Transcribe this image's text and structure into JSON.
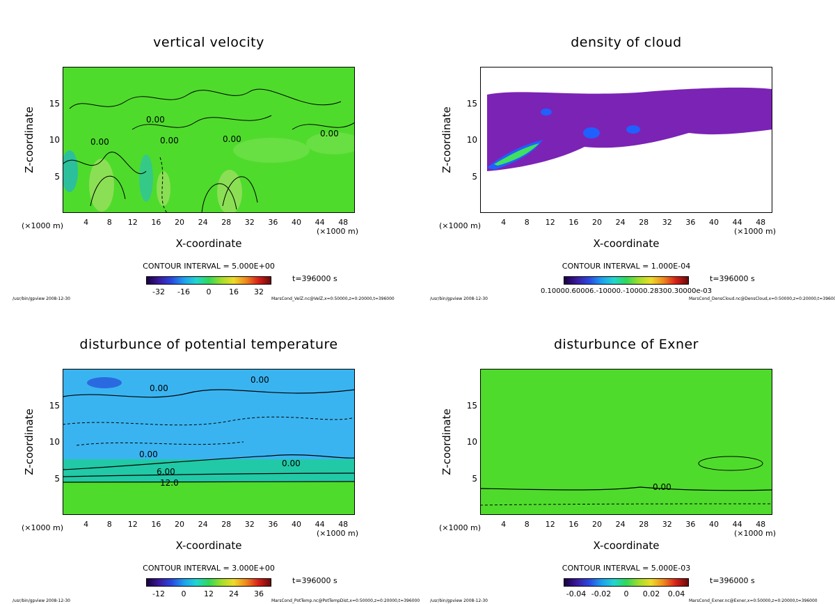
{
  "chart_data": [
    {
      "type": "heatmap",
      "title": "vertical velocity",
      "xlabel": "X-coordinate",
      "ylabel": "Z-coordinate",
      "x_unit_left": "(×1000 m)",
      "x_unit_right": "(×1000 m)",
      "xlim": [
        0,
        50
      ],
      "ylim": [
        0,
        20
      ],
      "xticks": [
        4,
        8,
        12,
        16,
        20,
        24,
        28,
        32,
        36,
        40,
        44,
        48
      ],
      "yticks": [
        5,
        10,
        15
      ],
      "contour_interval": "CONTOUR INTERVAL = 5.000E+00",
      "colorbar": {
        "min": -40,
        "max": 40,
        "ticks": [
          "-32",
          "-16",
          "0",
          "16",
          "32"
        ]
      },
      "time_label": "t=396000 s",
      "footer_left": "/usr/bin/gpview  2008-12-30",
      "footer_right": "MarsCond_VelZ.nc@VelZ,x=0:50000,z=0:20000,t=396000",
      "contour_labels": [
        "0.00",
        "0.00",
        "0.00",
        "0.00",
        "0.00"
      ],
      "colors": {
        "background": "#4fdb2c",
        "accent": "#9ae060",
        "negative": "#23b8b8"
      }
    },
    {
      "type": "heatmap",
      "title": "density of cloud",
      "xlabel": "X-coordinate",
      "ylabel": "Z-coordinate",
      "x_unit_left": "(×1000 m)",
      "x_unit_right": "(×1000 m)",
      "xlim": [
        0,
        50
      ],
      "ylim": [
        0,
        20
      ],
      "xticks": [
        4,
        8,
        12,
        16,
        20,
        24,
        28,
        32,
        36,
        40,
        44,
        48
      ],
      "yticks": [
        5,
        10,
        15
      ],
      "contour_interval": "CONTOUR INTERVAL = 1.000E-04",
      "colorbar": {
        "min": 0,
        "max": 0.001,
        "ticks": []
      },
      "colorbar_label": "0.10000.60006.-10000.-10000.28300.30000e-03",
      "time_label": "t=396000 s",
      "footer_left": "/usr/bin/gpview  2008-12-30",
      "footer_right": "MarsCond_DensCloud.nc@DensCloud,x=0:50000,z=0:20000,t=396000",
      "contour_labels": [],
      "colors": {
        "background": "#ffffff",
        "cloud": "#7b23b5",
        "core": "#2060ff",
        "peak": "#40e060"
      }
    },
    {
      "type": "heatmap",
      "title": "disturbunce of potential temperature",
      "xlabel": "X-coordinate",
      "ylabel": "Z-coordinate",
      "x_unit_left": "(×1000 m)",
      "x_unit_right": "(×1000 m)",
      "xlim": [
        0,
        50
      ],
      "ylim": [
        0,
        20
      ],
      "xticks": [
        4,
        8,
        12,
        16,
        20,
        24,
        28,
        32,
        36,
        40,
        44,
        48
      ],
      "yticks": [
        5,
        10,
        15
      ],
      "contour_interval": "CONTOUR INTERVAL = 3.000E+00",
      "colorbar": {
        "min": -18,
        "max": 42,
        "ticks": [
          "-12",
          "0",
          "12",
          "24",
          "36"
        ]
      },
      "time_label": "t=396000 s",
      "footer_left": "/usr/bin/gpview  2008-12-30",
      "footer_right": "MarsCond_PotTemp.nc@PotTempDist,x=0:50000,z=0:20000,t=396000",
      "contour_labels": [
        "0.00",
        "0.00",
        "0.00",
        "0.00",
        "6.00",
        "12.0"
      ],
      "colors": {
        "background": "#4fdb2c",
        "upper": "#3ab4f0",
        "band": "#21c9a6"
      }
    },
    {
      "type": "heatmap",
      "title": "disturbunce of Exner",
      "xlabel": "X-coordinate",
      "ylabel": "Z-coordinate",
      "x_unit_left": "(×1000 m)",
      "x_unit_right": "(×1000 m)",
      "xlim": [
        0,
        50
      ],
      "ylim": [
        0,
        20
      ],
      "xticks": [
        4,
        8,
        12,
        16,
        20,
        24,
        28,
        32,
        36,
        40,
        44,
        48
      ],
      "yticks": [
        5,
        10,
        15
      ],
      "contour_interval": "CONTOUR INTERVAL = 5.000E-03",
      "colorbar": {
        "min": -0.05,
        "max": 0.05,
        "ticks": [
          "-0.04",
          "-0.02",
          "0",
          "0.02",
          "0.04"
        ]
      },
      "time_label": "t=396000 s",
      "footer_left": "/usr/bin/gpview  2008-12-30",
      "footer_right": "MarsCond_Exner.nc@Exner,x=0:50000,z=0:20000,t=396000",
      "contour_labels": [
        "0.00"
      ],
      "colors": {
        "background": "#4fdb2c"
      }
    }
  ]
}
